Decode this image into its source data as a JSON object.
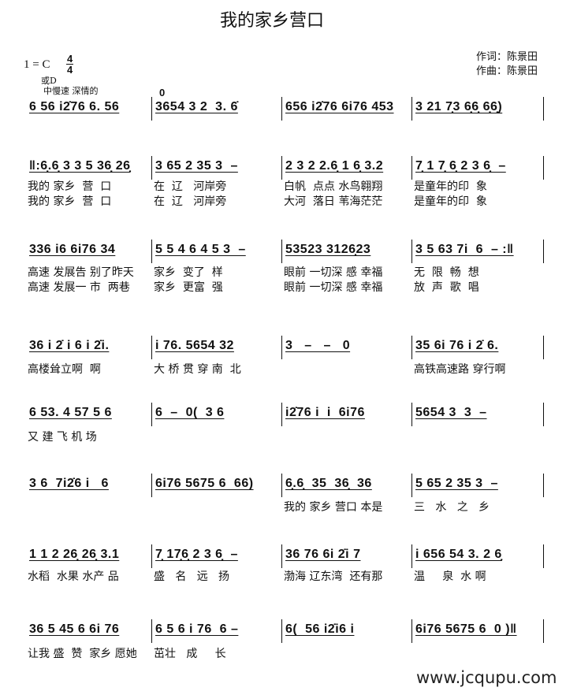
{
  "title": "我的家乡营口",
  "key": "1 = C",
  "time_signature": {
    "top": "4",
    "bottom": "4"
  },
  "key_alt": "或D",
  "tempo": "中慢速  深情的",
  "credits": {
    "lyricist": "作词：陈景田",
    "composer": "作曲：陈景田"
  },
  "pickup_rest": "0",
  "systems": [
    {
      "measures": [
        {
          "notes": "6 56 i2̇76 6. 56",
          "lyrics": []
        },
        {
          "notes": "3654 3 2  3. 6̇",
          "lyrics": []
        },
        {
          "notes": "656 i2̇76 6i76 453",
          "lyrics": []
        },
        {
          "notes": "3 21 7̣3 6̣6̣ 6̣6̣)",
          "lyrics": []
        }
      ]
    },
    {
      "measures": [
        {
          "notes": "‖:6̣.6̣ 3 3 5 36̣ 26̣",
          "lyrics": [
            "我的 家乡  营  口",
            "我的 家乡  营  口"
          ]
        },
        {
          "notes": "3 65 2 35 3  –",
          "lyrics": [
            "在  辽   河岸旁",
            "在  辽   河岸旁"
          ]
        },
        {
          "notes": "2 3 2 2.6̣ 1 6̣ 3.2",
          "lyrics": [
            "白帆  点点 水鸟翱翔",
            "大河  落日 苇海茫茫"
          ]
        },
        {
          "notes": "7̣ 1 7̣ 6̣ 2 3 6̣  –",
          "lyrics": [
            "是童年的印  象",
            "是童年的印  象"
          ]
        }
      ]
    },
    {
      "measures": [
        {
          "notes": "336 i6 6i76 34",
          "lyrics": [
            "高速 发展告 别了昨天",
            "高速 发展一 市  两巷"
          ]
        },
        {
          "notes": "5 5 4 6 4 5 3  –",
          "lyrics": [
            "家乡  变了  样",
            "家乡  更富  强"
          ]
        },
        {
          "notes": "53523 3126̣23",
          "lyrics": [
            "眼前 一切深 感 幸福",
            "眼前 一切深 感 幸福"
          ]
        },
        {
          "notes": "3 5 63 7i  6  – :‖",
          "lyrics": [
            "无  限  畅  想",
            "放  声  歌  唱"
          ]
        }
      ]
    },
    {
      "measures": [
        {
          "notes": "36 i 2̇ i 6 i 2̇i.",
          "lyrics": [
            "高楼耸立啊  啊"
          ]
        },
        {
          "notes": "i 76. 5654 32",
          "lyrics": [
            "大 桥 贯 穿 南  北"
          ]
        },
        {
          "notes": "3   –   –   0",
          "lyrics": []
        },
        {
          "notes": "35 6i 76 i 2̇ 6.",
          "lyrics": [
            "高铁高速路 穿行啊"
          ]
        }
      ]
    },
    {
      "measures": [
        {
          "notes": "6 53. 4 57 5 6",
          "lyrics": [
            "又 建 飞 机 场"
          ]
        },
        {
          "notes": "6  –  0(  3 6",
          "lyrics": []
        },
        {
          "notes": "i2̇76 i  i  6i76",
          "lyrics": []
        },
        {
          "notes": "5654 3  3  –",
          "lyrics": []
        }
      ]
    },
    {
      "measures": [
        {
          "notes": "3 6  7i2̇6 i   6",
          "lyrics": []
        },
        {
          "notes": "6i76 5675 6  66)",
          "lyrics": []
        },
        {
          "notes": "6̣.6̣  35  36̣  36",
          "lyrics": [
            "我的 家乡 营口 本是"
          ]
        },
        {
          "notes": "5 65 2 35 3  –",
          "lyrics": [
            "三   水   之   乡"
          ]
        }
      ]
    },
    {
      "measures": [
        {
          "notes": "1 1 2 26̣ 26̣ 3.1",
          "lyrics": [
            "水稻  水果 水产 品"
          ]
        },
        {
          "notes": "7̣ 17̣6̣ 2 3 6̣  –",
          "lyrics": [
            "盛   名   远   扬"
          ]
        },
        {
          "notes": "36 76 6i 2̇i 7",
          "lyrics": [
            "渤海 辽东湾  还有那"
          ]
        },
        {
          "notes": "i 656 54 3. 2 6̣",
          "lyrics": [
            "温     泉  水 啊"
          ]
        }
      ]
    },
    {
      "measures": [
        {
          "notes": "36 5 45 6 6i 76",
          "lyrics": [
            "让我 盛  赞  家乡 愿她"
          ]
        },
        {
          "notes": "6 5 6 i 76  6 –",
          "lyrics": [
            "茁壮   成     长"
          ]
        },
        {
          "notes": "6(  56 i2̇i6 i",
          "lyrics": []
        },
        {
          "notes": "6i76 5675 6  0 )‖",
          "lyrics": []
        }
      ]
    }
  ],
  "watermark": "www.jcqupu.com"
}
